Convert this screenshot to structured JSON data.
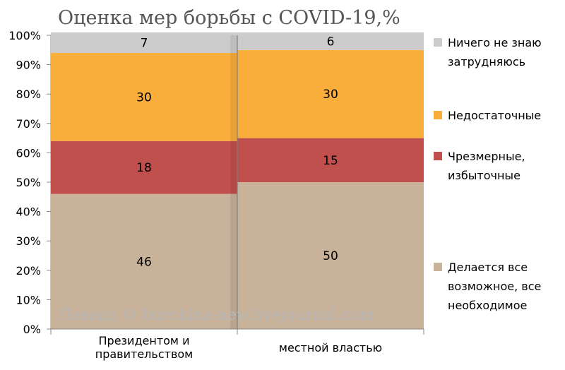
{
  "chart_data": {
    "type": "bar",
    "stacked": true,
    "title": "Оценка мер борьбы с COVID-19,%",
    "categories": [
      [
        "Президентом и",
        "правительством"
      ],
      [
        "местной властью"
      ]
    ],
    "series": [
      {
        "name": "Делается все возможное, все необходимое",
        "legend_lines": [
          "Делается все",
          "возможное, все",
          "необходимое"
        ],
        "color": "#c8b29a",
        "values": [
          46,
          50
        ]
      },
      {
        "name": "Чрезмерные, избыточные",
        "legend_lines": [
          "Чрезмерные,",
          "избыточные"
        ],
        "color": "#c0504d",
        "values": [
          18,
          15
        ]
      },
      {
        "name": "Недостаточные",
        "legend_lines": [
          "Недостаточные"
        ],
        "color": "#f9ae3b",
        "values": [
          30,
          30
        ]
      },
      {
        "name": "Ничего не знаю затрудняюсь",
        "legend_lines": [
          "Ничего не знаю",
          "затрудняюсь"
        ],
        "color": "#cccccc",
        "values": [
          7,
          6
        ]
      }
    ],
    "ylim": [
      0,
      100
    ],
    "yticks": [
      "0%",
      "10%",
      "20%",
      "30%",
      "40%",
      "50%",
      "60%",
      "70%",
      "80%",
      "90%",
      "100%"
    ],
    "legend_position": "right",
    "grid": false
  },
  "watermark": "Левада © burckina-new.livejournal.com"
}
